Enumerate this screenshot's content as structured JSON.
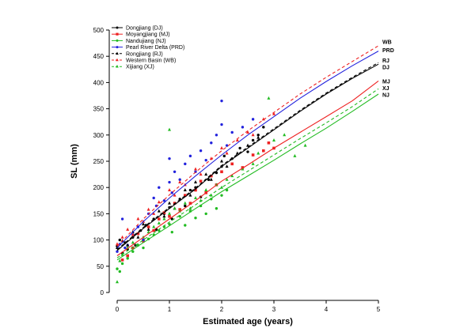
{
  "chart_data": {
    "type": "scatter",
    "xlabel": "Estimated age (years)",
    "ylabel": "SL (mm)",
    "xlim": [
      0,
      5
    ],
    "ylim": [
      0,
      500
    ],
    "x_ticks": [
      "0",
      "1",
      "2",
      "3",
      "4",
      "5"
    ],
    "y_ticks": [
      "0",
      "50",
      "100",
      "150",
      "200",
      "250",
      "300",
      "350",
      "400",
      "450",
      "500"
    ],
    "grid": false,
    "legend_position": "top-left",
    "series": [
      {
        "name": "Dongjiang (DJ)",
        "code": "DJ",
        "color": "#000000",
        "marker": "circle",
        "line_style": "solid",
        "curve": [
          [
            0,
            80
          ],
          [
            0.5,
            122
          ],
          [
            1,
            160
          ],
          [
            1.5,
            197
          ],
          [
            2,
            240
          ],
          [
            2.5,
            275
          ],
          [
            3,
            310
          ],
          [
            3.5,
            345
          ],
          [
            4,
            378
          ],
          [
            4.5,
            408
          ],
          [
            5,
            435
          ]
        ],
        "end_label_value": 430
      },
      {
        "name": "Moyangjiang (MJ)",
        "code": "MJ",
        "color": "#ee2222",
        "marker": "square",
        "line_style": "solid",
        "curve": [
          [
            0,
            70
          ],
          [
            0.5,
            105
          ],
          [
            1,
            140
          ],
          [
            1.5,
            175
          ],
          [
            2,
            212
          ],
          [
            2.5,
            243
          ],
          [
            3,
            275
          ],
          [
            3.5,
            305
          ],
          [
            4,
            335
          ],
          [
            4.5,
            365
          ],
          [
            5,
            403
          ]
        ],
        "end_label_value": 403
      },
      {
        "name": "Nandujiang (NJ)",
        "code": "NJ",
        "color": "#22bb22",
        "marker": "circle",
        "line_style": "solid",
        "curve": [
          [
            0,
            62
          ],
          [
            0.5,
            95
          ],
          [
            1,
            127
          ],
          [
            1.5,
            160
          ],
          [
            2,
            192
          ],
          [
            2.5,
            222
          ],
          [
            3,
            252
          ],
          [
            3.5,
            283
          ],
          [
            4,
            313
          ],
          [
            4.5,
            345
          ],
          [
            5,
            378
          ]
        ],
        "end_label_value": 377
      },
      {
        "name": "Pearl River Delta (PRD)",
        "code": "PRD",
        "color": "#2222dd",
        "marker": "circle",
        "line_style": "solid",
        "curve": [
          [
            0,
            85
          ],
          [
            0.5,
            135
          ],
          [
            1,
            180
          ],
          [
            1.5,
            222
          ],
          [
            2,
            262
          ],
          [
            2.5,
            300
          ],
          [
            3,
            335
          ],
          [
            3.5,
            370
          ],
          [
            4,
            402
          ],
          [
            4.5,
            432
          ],
          [
            5,
            460
          ]
        ],
        "end_label_value": 462
      },
      {
        "name": "Rongjiang (RJ)",
        "code": "RJ",
        "color": "#000000",
        "marker": "triangle",
        "line_style": "dashed",
        "curve": [
          [
            0,
            82
          ],
          [
            0.5,
            124
          ],
          [
            1,
            162
          ],
          [
            1.5,
            199
          ],
          [
            2,
            242
          ],
          [
            2.5,
            277
          ],
          [
            3,
            312
          ],
          [
            3.5,
            347
          ],
          [
            4,
            380
          ],
          [
            4.5,
            410
          ],
          [
            5,
            438
          ]
        ],
        "end_label_value": 443
      },
      {
        "name": "Western Basin (WB)",
        "code": "WB",
        "color": "#ee2222",
        "marker": "triangle",
        "line_style": "dashed",
        "curve": [
          [
            0,
            88
          ],
          [
            0.5,
            140
          ],
          [
            1,
            186
          ],
          [
            1.5,
            229
          ],
          [
            2,
            270
          ],
          [
            2.5,
            308
          ],
          [
            3,
            343
          ],
          [
            3.5,
            378
          ],
          [
            4,
            410
          ],
          [
            4.5,
            440
          ],
          [
            5,
            470
          ]
        ],
        "end_label_value": 478
      },
      {
        "name": "Xijiang (XJ)",
        "code": "XJ",
        "color": "#22bb22",
        "marker": "triangle",
        "line_style": "dashed",
        "curve": [
          [
            0,
            66
          ],
          [
            0.5,
            100
          ],
          [
            1,
            134
          ],
          [
            1.5,
            167
          ],
          [
            2,
            200
          ],
          [
            2.5,
            231
          ],
          [
            3,
            262
          ],
          [
            3.5,
            293
          ],
          [
            4,
            323
          ],
          [
            4.5,
            354
          ],
          [
            5,
            388
          ]
        ],
        "end_label_value": 390
      }
    ],
    "scatter_groups": [
      {
        "series": "Dongjiang (DJ)",
        "points": [
          [
            0.0,
            88
          ],
          [
            0.05,
            100
          ],
          [
            0.1,
            75
          ],
          [
            0.15,
            95
          ],
          [
            0.2,
            82
          ],
          [
            0.3,
            105
          ],
          [
            0.35,
            90
          ],
          [
            0.45,
            118
          ],
          [
            0.5,
            100
          ],
          [
            0.55,
            128
          ],
          [
            0.7,
            140
          ],
          [
            0.75,
            120
          ],
          [
            0.9,
            150
          ],
          [
            1.0,
            162
          ],
          [
            1.05,
            140
          ],
          [
            1.2,
            178
          ],
          [
            1.3,
            165
          ],
          [
            1.4,
            195
          ],
          [
            1.5,
            200
          ],
          [
            1.6,
            182
          ],
          [
            1.75,
            215
          ],
          [
            1.9,
            228
          ],
          [
            2.0,
            240
          ],
          [
            2.05,
            260
          ],
          [
            2.2,
            255
          ],
          [
            2.35,
            275
          ],
          [
            2.5,
            268
          ],
          [
            2.6,
            290
          ],
          [
            2.7,
            300
          ],
          [
            2.8,
            315
          ]
        ]
      },
      {
        "series": "Moyangjiang (MJ)",
        "points": [
          [
            0.1,
            62
          ],
          [
            0.2,
            70
          ],
          [
            0.3,
            85
          ],
          [
            0.4,
            112
          ],
          [
            0.5,
            98
          ],
          [
            0.6,
            125
          ],
          [
            0.7,
            118
          ],
          [
            0.8,
            140
          ],
          [
            0.9,
            152
          ],
          [
            1.0,
            145
          ],
          [
            1.1,
            170
          ],
          [
            1.2,
            158
          ],
          [
            1.3,
            185
          ],
          [
            1.4,
            170
          ],
          [
            1.5,
            195
          ],
          [
            1.6,
            212
          ],
          [
            1.7,
            190
          ],
          [
            1.8,
            222
          ],
          [
            1.9,
            205
          ],
          [
            2.0,
            230
          ],
          [
            2.2,
            245
          ],
          [
            2.4,
            238
          ],
          [
            2.6,
            262
          ],
          [
            2.8,
            270
          ],
          [
            2.9,
            285
          ],
          [
            3.0,
            275
          ]
        ]
      },
      {
        "series": "Nandujiang (NJ)",
        "points": [
          [
            0.0,
            45
          ],
          [
            0.05,
            40
          ],
          [
            0.1,
            55
          ],
          [
            0.2,
            65
          ],
          [
            0.3,
            78
          ],
          [
            0.4,
            90
          ],
          [
            0.5,
            85
          ],
          [
            0.6,
            102
          ],
          [
            0.7,
            110
          ],
          [
            0.8,
            118
          ],
          [
            0.9,
            125
          ],
          [
            1.0,
            130
          ],
          [
            1.05,
            115
          ],
          [
            1.2,
            145
          ],
          [
            1.3,
            128
          ],
          [
            1.4,
            155
          ],
          [
            1.5,
            142
          ],
          [
            1.6,
            165
          ],
          [
            1.7,
            150
          ],
          [
            1.8,
            178
          ],
          [
            1.9,
            160
          ],
          [
            2.0,
            185
          ],
          [
            2.1,
            195
          ]
        ]
      },
      {
        "series": "Pearl River Delta (PRD)",
        "points": [
          [
            0.0,
            78
          ],
          [
            0.05,
            92
          ],
          [
            0.1,
            140
          ],
          [
            0.15,
            85
          ],
          [
            0.2,
            90
          ],
          [
            0.3,
            110
          ],
          [
            0.4,
            125
          ],
          [
            0.5,
            100
          ],
          [
            0.6,
            150
          ],
          [
            0.7,
            180
          ],
          [
            0.75,
            165
          ],
          [
            0.8,
            200
          ],
          [
            0.9,
            175
          ],
          [
            1.0,
            210
          ],
          [
            1.0,
            255
          ],
          [
            1.05,
            190
          ],
          [
            1.1,
            230
          ],
          [
            1.2,
            215
          ],
          [
            1.3,
            245
          ],
          [
            1.4,
            260
          ],
          [
            1.5,
            230
          ],
          [
            1.6,
            270
          ],
          [
            1.7,
            252
          ],
          [
            1.8,
            285
          ],
          [
            1.9,
            300
          ],
          [
            2.0,
            320
          ],
          [
            2.0,
            365
          ],
          [
            2.1,
            280
          ],
          [
            2.2,
            305
          ],
          [
            2.4,
            315
          ],
          [
            2.6,
            330
          ]
        ]
      },
      {
        "series": "Rongjiang (RJ)",
        "points": [
          [
            0.0,
            85
          ],
          [
            0.1,
            98
          ],
          [
            0.2,
            90
          ],
          [
            0.3,
            115
          ],
          [
            0.4,
            105
          ],
          [
            0.5,
            130
          ],
          [
            0.6,
            120
          ],
          [
            0.8,
            155
          ],
          [
            0.9,
            145
          ],
          [
            1.0,
            170
          ],
          [
            1.1,
            160
          ],
          [
            1.3,
            195
          ],
          [
            1.4,
            185
          ],
          [
            1.5,
            210
          ],
          [
            1.7,
            225
          ],
          [
            1.8,
            215
          ],
          [
            2.0,
            250
          ],
          [
            2.1,
            240
          ],
          [
            2.3,
            265
          ],
          [
            2.5,
            280
          ],
          [
            2.7,
            295
          ]
        ]
      },
      {
        "series": "Western Basin (WB)",
        "points": [
          [
            0.0,
            92
          ],
          [
            0.1,
            105
          ],
          [
            0.2,
            120
          ],
          [
            0.3,
            110
          ],
          [
            0.4,
            140
          ],
          [
            0.5,
            135
          ],
          [
            0.6,
            158
          ],
          [
            0.7,
            150
          ],
          [
            0.8,
            172
          ],
          [
            1.0,
            195
          ],
          [
            1.1,
            185
          ],
          [
            1.2,
            210
          ],
          [
            1.3,
            205
          ],
          [
            1.5,
            235
          ],
          [
            1.6,
            225
          ],
          [
            1.8,
            255
          ],
          [
            2.0,
            275
          ],
          [
            2.1,
            265
          ],
          [
            2.3,
            290
          ],
          [
            2.5,
            305
          ],
          [
            2.6,
            300
          ],
          [
            2.8,
            330
          ],
          [
            3.0,
            340
          ]
        ]
      },
      {
        "series": "Xijiang (XJ)",
        "points": [
          [
            0.0,
            20
          ],
          [
            0.05,
            60
          ],
          [
            0.1,
            72
          ],
          [
            0.2,
            85
          ],
          [
            0.3,
            95
          ],
          [
            0.5,
            105
          ],
          [
            0.6,
            115
          ],
          [
            0.7,
            125
          ],
          [
            0.8,
            132
          ],
          [
            0.9,
            140
          ],
          [
            1.0,
            310
          ],
          [
            1.0,
            150
          ],
          [
            1.1,
            160
          ],
          [
            1.2,
            155
          ],
          [
            1.3,
            170
          ],
          [
            1.4,
            160
          ],
          [
            1.5,
            180
          ],
          [
            1.6,
            175
          ],
          [
            1.7,
            195
          ],
          [
            1.8,
            185
          ],
          [
            1.9,
            205
          ],
          [
            2.0,
            200
          ],
          [
            2.1,
            215
          ],
          [
            2.2,
            222
          ],
          [
            2.4,
            235
          ],
          [
            2.6,
            245
          ],
          [
            2.7,
            265
          ],
          [
            2.9,
            370
          ],
          [
            3.0,
            290
          ],
          [
            3.2,
            300
          ],
          [
            3.4,
            260
          ],
          [
            3.6,
            280
          ]
        ]
      }
    ]
  }
}
